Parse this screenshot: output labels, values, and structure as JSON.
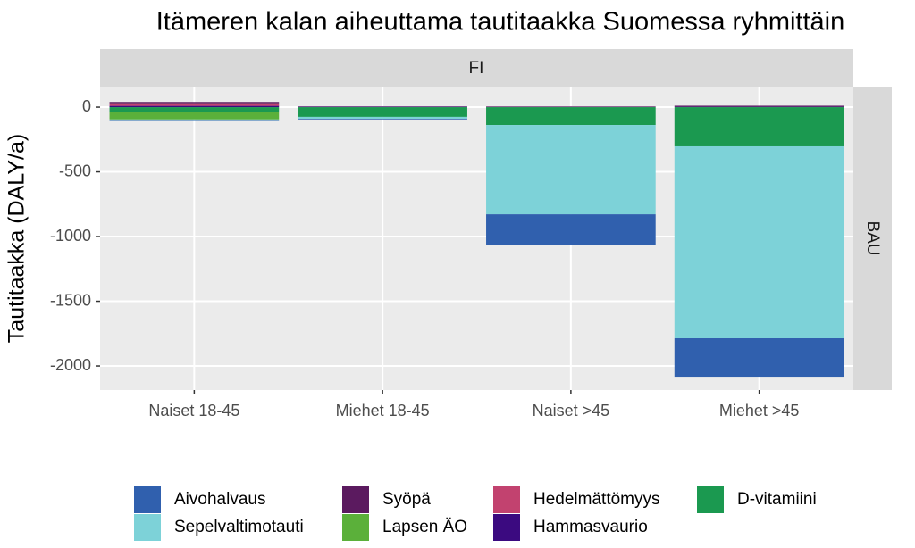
{
  "chart_data": {
    "type": "stacked-bar",
    "title": "Itämeren kalan aiheuttama tautitaakka Suomessa ryhmittäin",
    "facet_column": "FI",
    "facet_row": "BAU",
    "ylabel": "Tautitaakka (DALY/a)",
    "categories": [
      "Naiset 18-45",
      "Miehet 18-45",
      "Naiset >45",
      "Miehet >45"
    ],
    "series": [
      {
        "name": "Aivohalvaus",
        "color": "#3060ae",
        "values": [
          -3,
          -5,
          -234,
          -297
        ]
      },
      {
        "name": "Sepelvaltimotauti",
        "color": "#7dd2d8",
        "values": [
          -10,
          -15,
          -690,
          -1483
        ]
      },
      {
        "name": "Syöpä",
        "color": "#5b1a5f",
        "values": [
          10,
          3,
          5,
          8
        ]
      },
      {
        "name": "Lapsen ÄO",
        "color": "#5bb03a",
        "values": [
          -60,
          0,
          0,
          0
        ]
      },
      {
        "name": "Hedelmättömyys",
        "color": "#c2426f",
        "values": [
          20,
          0,
          0,
          0
        ]
      },
      {
        "name": "Hammasvaurio",
        "color": "#3b0a80",
        "values": [
          10,
          3,
          0,
          3
        ]
      },
      {
        "name": "D-vitamiini",
        "color": "#1b9950",
        "values": [
          -35,
          -75,
          -138,
          -303
        ]
      }
    ],
    "ylim": [
      -2186,
      159
    ],
    "yticks": [
      -2000,
      -1500,
      -1000,
      -500,
      0
    ],
    "grid": true
  }
}
